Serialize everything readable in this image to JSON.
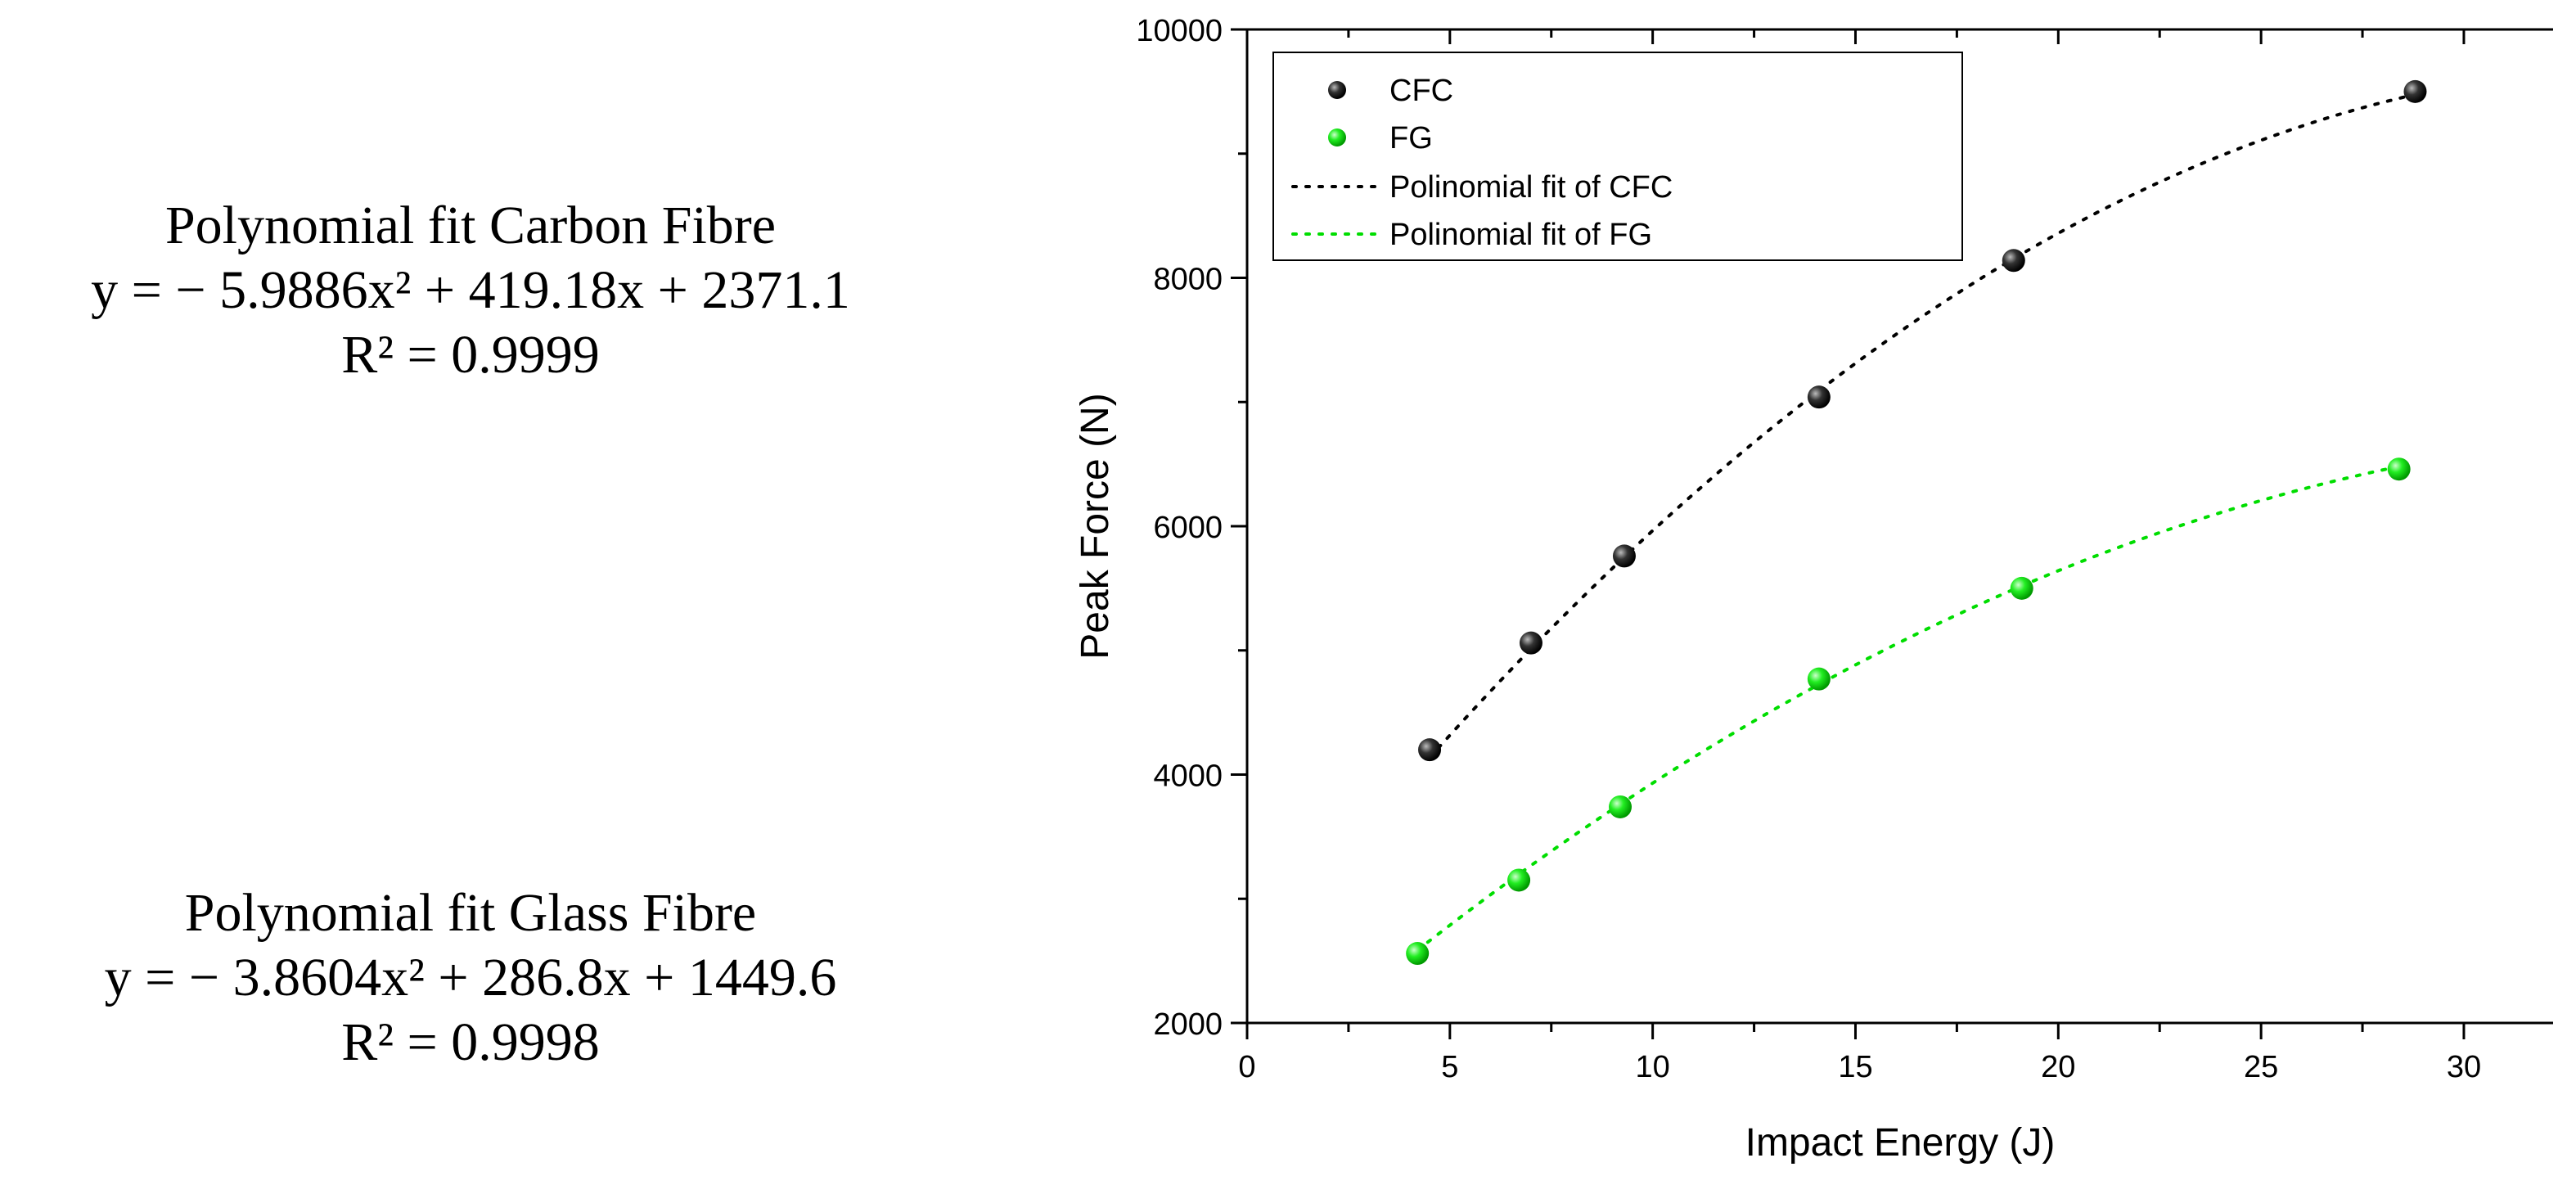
{
  "equations": {
    "carbon": {
      "title": "Polynomial fit Carbon Fibre",
      "equation": "y = − 5.9886x² + 419.18x + 2371.1",
      "r2": "R² = 0.9999"
    },
    "glass": {
      "title": "Polynomial fit Glass Fibre",
      "equation": "y = − 3.8604x² + 286.8x + 1449.6",
      "r2": "R² = 0.9998"
    }
  },
  "colors": {
    "cfc": "#1a1a1a",
    "fg": "#22ee22",
    "fit_cfc": "#000000",
    "fit_fg": "#00dd00",
    "axis": "#000000"
  },
  "chart_data": {
    "type": "scatter",
    "title": "",
    "xlabel": "Impact Energy (J)",
    "ylabel": "Peak Force (N)",
    "xlim": [
      0,
      32.2
    ],
    "ylim": [
      2000,
      10000
    ],
    "xticks": [
      0,
      5,
      10,
      15,
      20,
      25,
      30
    ],
    "yticks": [
      2000,
      4000,
      6000,
      8000,
      10000
    ],
    "x_tick_labels": [
      "0",
      "5",
      "10",
      "15",
      "20",
      "25",
      "30"
    ],
    "y_tick_labels": [
      "2000",
      "4000",
      "6000",
      "8000",
      "10000"
    ],
    "grid": false,
    "legend_position": "top-left",
    "series": [
      {
        "name": "CFC",
        "kind": "points",
        "x": [
          4.5,
          7.0,
          9.3,
          14.1,
          18.9,
          28.8
        ],
        "y": [
          4200,
          5060,
          5760,
          7040,
          8140,
          9500
        ]
      },
      {
        "name": "FG",
        "kind": "points",
        "x": [
          4.2,
          6.7,
          9.2,
          14.1,
          19.1,
          28.4
        ],
        "y": [
          2560,
          3150,
          3740,
          4770,
          5500,
          6460
        ]
      },
      {
        "name": "Polinomial fit of CFC",
        "kind": "fit",
        "coefficients": [
          -5.9886,
          419.18,
          2371.1
        ],
        "x_range": [
          4.5,
          28.8
        ]
      },
      {
        "name": "Polinomial fit of FG",
        "kind": "fit",
        "coefficients": [
          -3.8604,
          286.8,
          1449.6
        ],
        "x_range": [
          4.2,
          28.4
        ]
      }
    ]
  }
}
